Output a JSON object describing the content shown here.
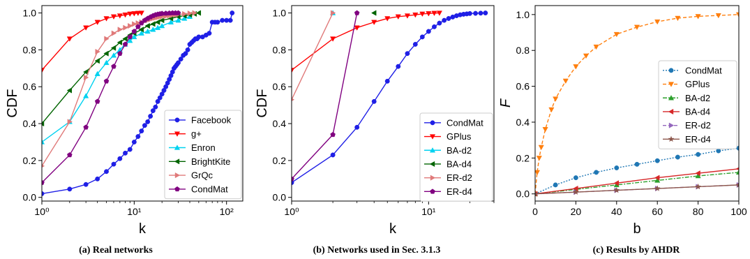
{
  "figure": {
    "captions": [
      "(a) Real networks",
      "(b) Networks used in Sec. 3.1.3",
      "(c) Results by AHDR"
    ]
  },
  "chart_data": [
    {
      "type": "line",
      "xscale": "log",
      "xlim": [
        1,
        150
      ],
      "ylim": [
        -0.02,
        1.04
      ],
      "xlabel": "k",
      "ylabel": "CDF",
      "xticks": [
        {
          "v": 1,
          "label": "10⁰"
        },
        {
          "v": 10,
          "label": "10¹"
        },
        {
          "v": 100,
          "label": "10²"
        }
      ],
      "yticks": [
        0.0,
        0.2,
        0.4,
        0.6,
        0.8,
        1.0
      ],
      "legend_position": "lower-right",
      "series": [
        {
          "name": "Facebook",
          "color": "#1f1fe6",
          "marker": "circle",
          "linestyle": "solid",
          "x": [
            1,
            2,
            3,
            4,
            5,
            6,
            7,
            8,
            9,
            10,
            11,
            12,
            13,
            14,
            15,
            16,
            17,
            18,
            19,
            20,
            21,
            22,
            23,
            24,
            25,
            26,
            27,
            28,
            29,
            30,
            32,
            34,
            36,
            38,
            40,
            42,
            44,
            46,
            48,
            50,
            55,
            60,
            65,
            70,
            75,
            80,
            90,
            100,
            110,
            115
          ],
          "y": [
            0.02,
            0.045,
            0.07,
            0.1,
            0.14,
            0.18,
            0.21,
            0.24,
            0.26,
            0.3,
            0.33,
            0.36,
            0.39,
            0.41,
            0.44,
            0.47,
            0.49,
            0.52,
            0.54,
            0.56,
            0.58,
            0.6,
            0.62,
            0.64,
            0.66,
            0.68,
            0.7,
            0.71,
            0.72,
            0.73,
            0.75,
            0.77,
            0.78,
            0.8,
            0.83,
            0.84,
            0.85,
            0.86,
            0.86,
            0.87,
            0.87,
            0.88,
            0.89,
            0.95,
            0.95,
            0.95,
            0.96,
            0.96,
            0.96,
            1.0
          ]
        },
        {
          "name": "g+",
          "color": "#ff0000",
          "marker": "triangle-down",
          "linestyle": "solid",
          "x": [
            1,
            2,
            3,
            4,
            5,
            6,
            7,
            8,
            9,
            10,
            11,
            12
          ],
          "y": [
            0.69,
            0.86,
            0.92,
            0.95,
            0.97,
            0.98,
            0.985,
            0.99,
            0.995,
            0.997,
            0.999,
            1.0
          ]
        },
        {
          "name": "Enron",
          "color": "#00d2f0",
          "marker": "triangle-up",
          "linestyle": "solid",
          "x": [
            1,
            2,
            3,
            4,
            5,
            6,
            7,
            8,
            9,
            10,
            12,
            14,
            16,
            18,
            20,
            25,
            30,
            35,
            40
          ],
          "y": [
            0.3,
            0.41,
            0.55,
            0.67,
            0.73,
            0.77,
            0.8,
            0.83,
            0.85,
            0.87,
            0.89,
            0.9,
            0.91,
            0.92,
            0.93,
            0.95,
            0.96,
            0.97,
            0.98
          ]
        },
        {
          "name": "BrightKite",
          "color": "#006400",
          "marker": "triangle-left",
          "linestyle": "solid",
          "x": [
            1,
            2,
            3,
            4,
            5,
            6,
            7,
            8,
            9,
            10,
            12,
            14,
            16,
            18,
            20,
            25,
            30,
            35,
            40,
            45,
            50
          ],
          "y": [
            0.4,
            0.58,
            0.68,
            0.74,
            0.78,
            0.81,
            0.84,
            0.86,
            0.88,
            0.89,
            0.91,
            0.93,
            0.94,
            0.95,
            0.96,
            0.97,
            0.98,
            0.985,
            0.99,
            0.995,
            1.0
          ]
        },
        {
          "name": "GrQc",
          "color": "#e07a7a",
          "marker": "triangle-right",
          "linestyle": "solid",
          "x": [
            1,
            2,
            3,
            4,
            5,
            6,
            7,
            8,
            9,
            10,
            11,
            12,
            13,
            14,
            15,
            16,
            17,
            18,
            19,
            20,
            22,
            24,
            26,
            28,
            30,
            35,
            40,
            45
          ],
          "y": [
            0.17,
            0.41,
            0.65,
            0.79,
            0.86,
            0.89,
            0.91,
            0.92,
            0.93,
            0.94,
            0.945,
            0.95,
            0.955,
            0.96,
            0.965,
            0.97,
            0.973,
            0.976,
            0.979,
            0.98,
            0.982,
            0.985,
            0.988,
            0.99,
            0.992,
            0.995,
            0.998,
            1.0
          ]
        },
        {
          "name": "CondMat",
          "color": "#800080",
          "marker": "pentagon",
          "linestyle": "solid",
          "x": [
            1,
            2,
            3,
            4,
            5,
            6,
            7,
            8,
            9,
            10,
            11,
            12,
            13,
            14,
            15,
            16,
            17,
            18,
            19,
            20,
            22,
            24,
            26,
            28,
            30
          ],
          "y": [
            0.08,
            0.23,
            0.38,
            0.52,
            0.63,
            0.71,
            0.78,
            0.83,
            0.87,
            0.9,
            0.925,
            0.945,
            0.96,
            0.97,
            0.978,
            0.985,
            0.99,
            0.993,
            0.995,
            0.997,
            0.998,
            0.999,
            1.0,
            1.0,
            1.0
          ]
        }
      ]
    },
    {
      "type": "line",
      "xscale": "log",
      "xlim": [
        1,
        30
      ],
      "ylim": [
        -0.02,
        1.04
      ],
      "xlabel": "k",
      "ylabel": "CDF",
      "xticks": [
        {
          "v": 1,
          "label": "10⁰"
        },
        {
          "v": 10,
          "label": "10¹"
        }
      ],
      "yticks": [
        0.0,
        0.2,
        0.4,
        0.6,
        0.8,
        1.0
      ],
      "legend_position": "lower-right",
      "series": [
        {
          "name": "CondMat",
          "color": "#1f1fe6",
          "marker": "circle",
          "linestyle": "solid",
          "x": [
            1,
            2,
            3,
            4,
            5,
            6,
            7,
            8,
            9,
            10,
            11,
            12,
            13,
            14,
            15,
            16,
            17,
            18,
            19,
            20,
            22,
            24,
            26
          ],
          "y": [
            0.08,
            0.23,
            0.38,
            0.52,
            0.63,
            0.71,
            0.78,
            0.83,
            0.87,
            0.9,
            0.925,
            0.945,
            0.96,
            0.97,
            0.978,
            0.985,
            0.99,
            0.993,
            0.995,
            0.997,
            0.998,
            0.999,
            1.0
          ]
        },
        {
          "name": "GPlus",
          "color": "#ff0000",
          "marker": "triangle-down",
          "linestyle": "solid",
          "x": [
            1,
            2,
            3,
            4,
            5,
            6,
            7,
            8,
            9,
            10,
            11,
            12
          ],
          "y": [
            0.69,
            0.86,
            0.92,
            0.95,
            0.97,
            0.98,
            0.985,
            0.99,
            0.995,
            0.997,
            0.999,
            1.0
          ]
        },
        {
          "name": "BA-d2",
          "color": "#00d2f0",
          "marker": "triangle-up",
          "linestyle": "solid",
          "x": [
            2
          ],
          "y": [
            1.0
          ]
        },
        {
          "name": "BA-d4",
          "color": "#006400",
          "marker": "triangle-left",
          "linestyle": "solid",
          "x": [
            4
          ],
          "y": [
            1.0
          ]
        },
        {
          "name": "ER-d2",
          "color": "#e07a7a",
          "marker": "triangle-right",
          "linestyle": "solid",
          "x": [
            1,
            2
          ],
          "y": [
            0.53,
            1.0
          ]
        },
        {
          "name": "ER-d4",
          "color": "#800080",
          "marker": "pentagon",
          "linestyle": "solid",
          "x": [
            1,
            2,
            3
          ],
          "y": [
            0.1,
            0.34,
            1.0
          ]
        }
      ]
    },
    {
      "type": "line",
      "xscale": "linear",
      "xlim": [
        0,
        100
      ],
      "ylim": [
        -0.04,
        1.05
      ],
      "xlabel": "b",
      "ylabel": "F",
      "xticks": [
        {
          "v": 0,
          "label": "0"
        },
        {
          "v": 20,
          "label": "20"
        },
        {
          "v": 40,
          "label": "40"
        },
        {
          "v": 60,
          "label": "60"
        },
        {
          "v": 80,
          "label": "80"
        },
        {
          "v": 100,
          "label": "100"
        }
      ],
      "yticks": [
        0.0,
        0.2,
        0.4,
        0.6,
        0.8,
        1.0
      ],
      "legend_position": "center-right",
      "series": [
        {
          "name": "CondMat",
          "color": "#1f77b4",
          "marker": "circle",
          "linestyle": "dotted",
          "x": [
            0,
            10,
            20,
            30,
            40,
            50,
            60,
            70,
            80,
            90,
            100
          ],
          "y": [
            0.0,
            0.05,
            0.09,
            0.12,
            0.145,
            0.165,
            0.185,
            0.205,
            0.22,
            0.24,
            0.255
          ]
        },
        {
          "name": "GPlus",
          "color": "#ff7f0e",
          "marker": "triangle-down",
          "linestyle": "dashed",
          "x": [
            0,
            1,
            2,
            3,
            5,
            8,
            10,
            15,
            20,
            25,
            30,
            40,
            50,
            60,
            70,
            80,
            90,
            100
          ],
          "y": [
            0.0,
            0.12,
            0.2,
            0.26,
            0.36,
            0.47,
            0.53,
            0.63,
            0.71,
            0.77,
            0.82,
            0.89,
            0.93,
            0.96,
            0.98,
            0.99,
            0.995,
            1.0
          ]
        },
        {
          "name": "BA-d2",
          "color": "#2ca02c",
          "marker": "triangle-up",
          "linestyle": "dashdot",
          "x": [
            0,
            20,
            40,
            60,
            80,
            100
          ],
          "y": [
            0.0,
            0.025,
            0.05,
            0.075,
            0.1,
            0.12
          ]
        },
        {
          "name": "BA-d4",
          "color": "#d62728",
          "marker": "triangle-left",
          "linestyle": "solid",
          "x": [
            0,
            20,
            40,
            60,
            80,
            100
          ],
          "y": [
            0.0,
            0.03,
            0.06,
            0.09,
            0.115,
            0.14
          ]
        },
        {
          "name": "ER-d2",
          "color": "#9467bd",
          "marker": "triangle-right",
          "linestyle": "dashed",
          "x": [
            0,
            20,
            40,
            60,
            80,
            100
          ],
          "y": [
            0.0,
            0.01,
            0.02,
            0.03,
            0.04,
            0.05
          ]
        },
        {
          "name": "ER-d4",
          "color": "#8c564b",
          "marker": "star",
          "linestyle": "solid",
          "x": [
            0,
            20,
            40,
            60,
            80,
            100
          ],
          "y": [
            0.0,
            0.01,
            0.02,
            0.03,
            0.04,
            0.05
          ]
        }
      ]
    }
  ]
}
